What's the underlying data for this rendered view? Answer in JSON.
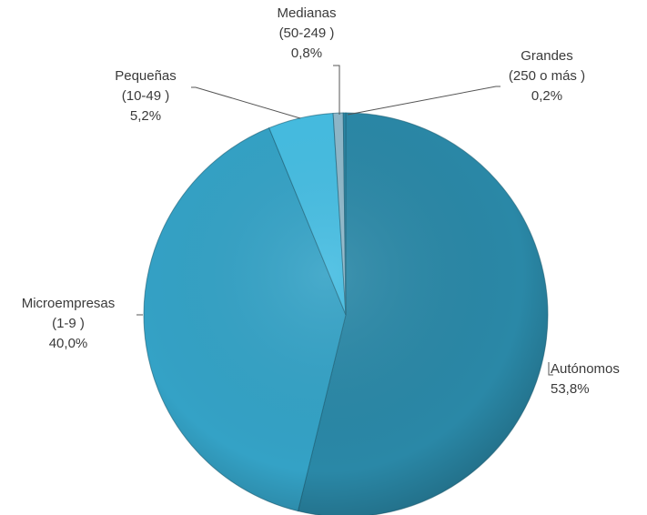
{
  "chart_data": {
    "type": "pie",
    "title": "",
    "slices": [
      {
        "name": "Autónomos",
        "line2": "",
        "value": 53.8,
        "label": "53,8%",
        "color": "#2a88a7"
      },
      {
        "name": "Microempresas",
        "line2": "(1-9 )",
        "value": 40.0,
        "label": "40,0%",
        "color": "#34a2c6"
      },
      {
        "name": "Pequeñas",
        "line2": "(10-49 )",
        "value": 5.2,
        "label": "5,2%",
        "color": "#45bde2"
      },
      {
        "name": "Medianas",
        "line2": "(50-249 )",
        "value": 0.8,
        "label": "0,8%",
        "color": "#8fb8ca"
      },
      {
        "name": "Grandes",
        "line2": "(250 o más )",
        "value": 0.2,
        "label": "0,2%",
        "color": "#2a88a7"
      }
    ],
    "start_angle": "12 o'clock",
    "direction": "clockwise",
    "legend": "none",
    "labels": "outside with leader lines"
  }
}
